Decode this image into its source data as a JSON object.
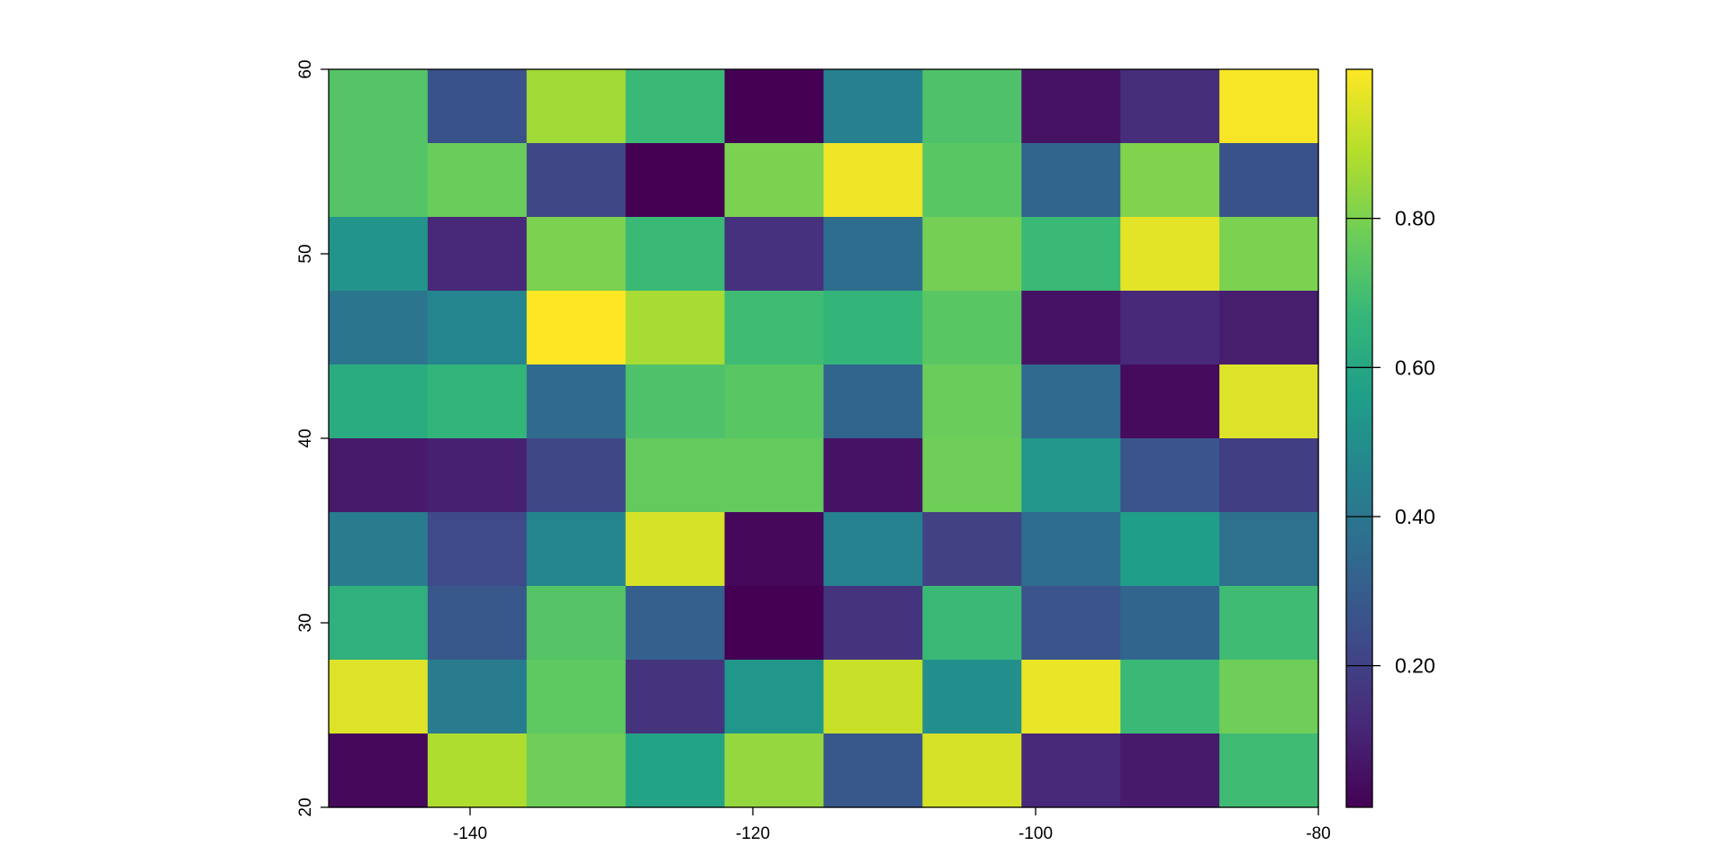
{
  "chart_data": {
    "type": "heatmap",
    "title": "",
    "xlabel": "",
    "ylabel": "",
    "xlim": [
      -150,
      -80
    ],
    "ylim": [
      20,
      60
    ],
    "x_ticks": [
      -140,
      -120,
      -100,
      -80
    ],
    "y_ticks": [
      20,
      30,
      40,
      50,
      60
    ],
    "x_tick_labels": [
      "-140",
      "-120",
      "-100",
      "-80"
    ],
    "y_tick_labels": [
      "20",
      "30",
      "40",
      "50",
      "60"
    ],
    "colormap": "viridis",
    "colormap_stops": [
      "#440154",
      "#482878",
      "#3e4a89",
      "#31688e",
      "#26828e",
      "#1f9e89",
      "#35b779",
      "#6ece58",
      "#b5de2b",
      "#fde725"
    ],
    "value_range": [
      0.01,
      1.0
    ],
    "nrows": 10,
    "ncols": 10,
    "cell_width": 7,
    "cell_height": 4,
    "values_top_to_bottom": [
      [
        0.73,
        0.26,
        0.86,
        0.68,
        0.01,
        0.44,
        0.72,
        0.06,
        0.14,
        0.99
      ],
      [
        0.73,
        0.77,
        0.22,
        0.01,
        0.8,
        0.98,
        0.74,
        0.33,
        0.81,
        0.26
      ],
      [
        0.52,
        0.12,
        0.8,
        0.68,
        0.15,
        0.36,
        0.79,
        0.68,
        0.96,
        0.8
      ],
      [
        0.4,
        0.46,
        1.0,
        0.87,
        0.69,
        0.66,
        0.74,
        0.06,
        0.12,
        0.09
      ],
      [
        0.62,
        0.66,
        0.35,
        0.72,
        0.74,
        0.33,
        0.77,
        0.35,
        0.04,
        0.95
      ],
      [
        0.08,
        0.1,
        0.22,
        0.76,
        0.76,
        0.06,
        0.78,
        0.53,
        0.27,
        0.19
      ],
      [
        0.42,
        0.23,
        0.46,
        0.94,
        0.03,
        0.45,
        0.2,
        0.36,
        0.56,
        0.38
      ],
      [
        0.64,
        0.28,
        0.73,
        0.31,
        0.01,
        0.16,
        0.68,
        0.27,
        0.33,
        0.69
      ],
      [
        0.95,
        0.42,
        0.75,
        0.16,
        0.53,
        0.92,
        0.5,
        0.97,
        0.68,
        0.78
      ],
      [
        0.03,
        0.88,
        0.78,
        0.58,
        0.84,
        0.28,
        0.94,
        0.12,
        0.08,
        0.69
      ]
    ],
    "legend": {
      "placement": "right",
      "ticks": [
        0.2,
        0.4,
        0.6,
        0.8
      ],
      "tick_labels": [
        "0.20",
        "0.40",
        "0.60",
        "0.80"
      ]
    },
    "grid": false
  }
}
